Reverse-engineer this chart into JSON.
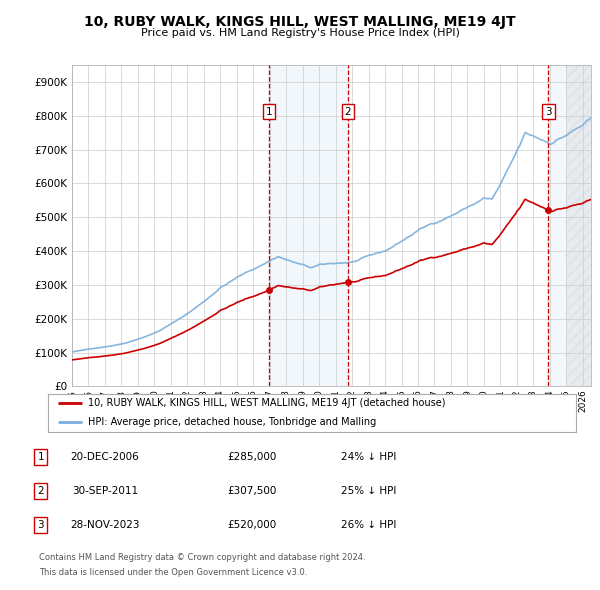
{
  "title": "10, RUBY WALK, KINGS HILL, WEST MALLING, ME19 4JT",
  "subtitle": "Price paid vs. HM Land Registry's House Price Index (HPI)",
  "ylim": [
    0,
    950000
  ],
  "yticks": [
    0,
    100000,
    200000,
    300000,
    400000,
    500000,
    600000,
    700000,
    800000,
    900000
  ],
  "hpi_color": "#7aaedc",
  "price_color": "#cc0000",
  "vline_color": "#cc0000",
  "shade_color": "#ddeeff",
  "grid_color": "#cccccc",
  "background_color": "#ffffff",
  "sales": [
    {
      "date_num": 2006.97,
      "price": 285000,
      "label": "1"
    },
    {
      "date_num": 2011.75,
      "price": 307500,
      "label": "2"
    },
    {
      "date_num": 2023.91,
      "price": 520000,
      "label": "3"
    }
  ],
  "sale_annotations": [
    {
      "label": "1",
      "date": "20-DEC-2006",
      "price": "£285,000",
      "pct": "24% ↓ HPI"
    },
    {
      "label": "2",
      "date": "30-SEP-2011",
      "price": "£307,500",
      "pct": "25% ↓ HPI"
    },
    {
      "label": "3",
      "date": "28-NOV-2023",
      "price": "£520,000",
      "pct": "26% ↓ HPI"
    }
  ],
  "legend_entries": [
    "10, RUBY WALK, KINGS HILL, WEST MALLING, ME19 4JT (detached house)",
    "HPI: Average price, detached house, Tonbridge and Malling"
  ],
  "footer_lines": [
    "Contains HM Land Registry data © Crown copyright and database right 2024.",
    "This data is licensed under the Open Government Licence v3.0."
  ],
  "xmin": 1995.0,
  "xmax": 2026.5
}
